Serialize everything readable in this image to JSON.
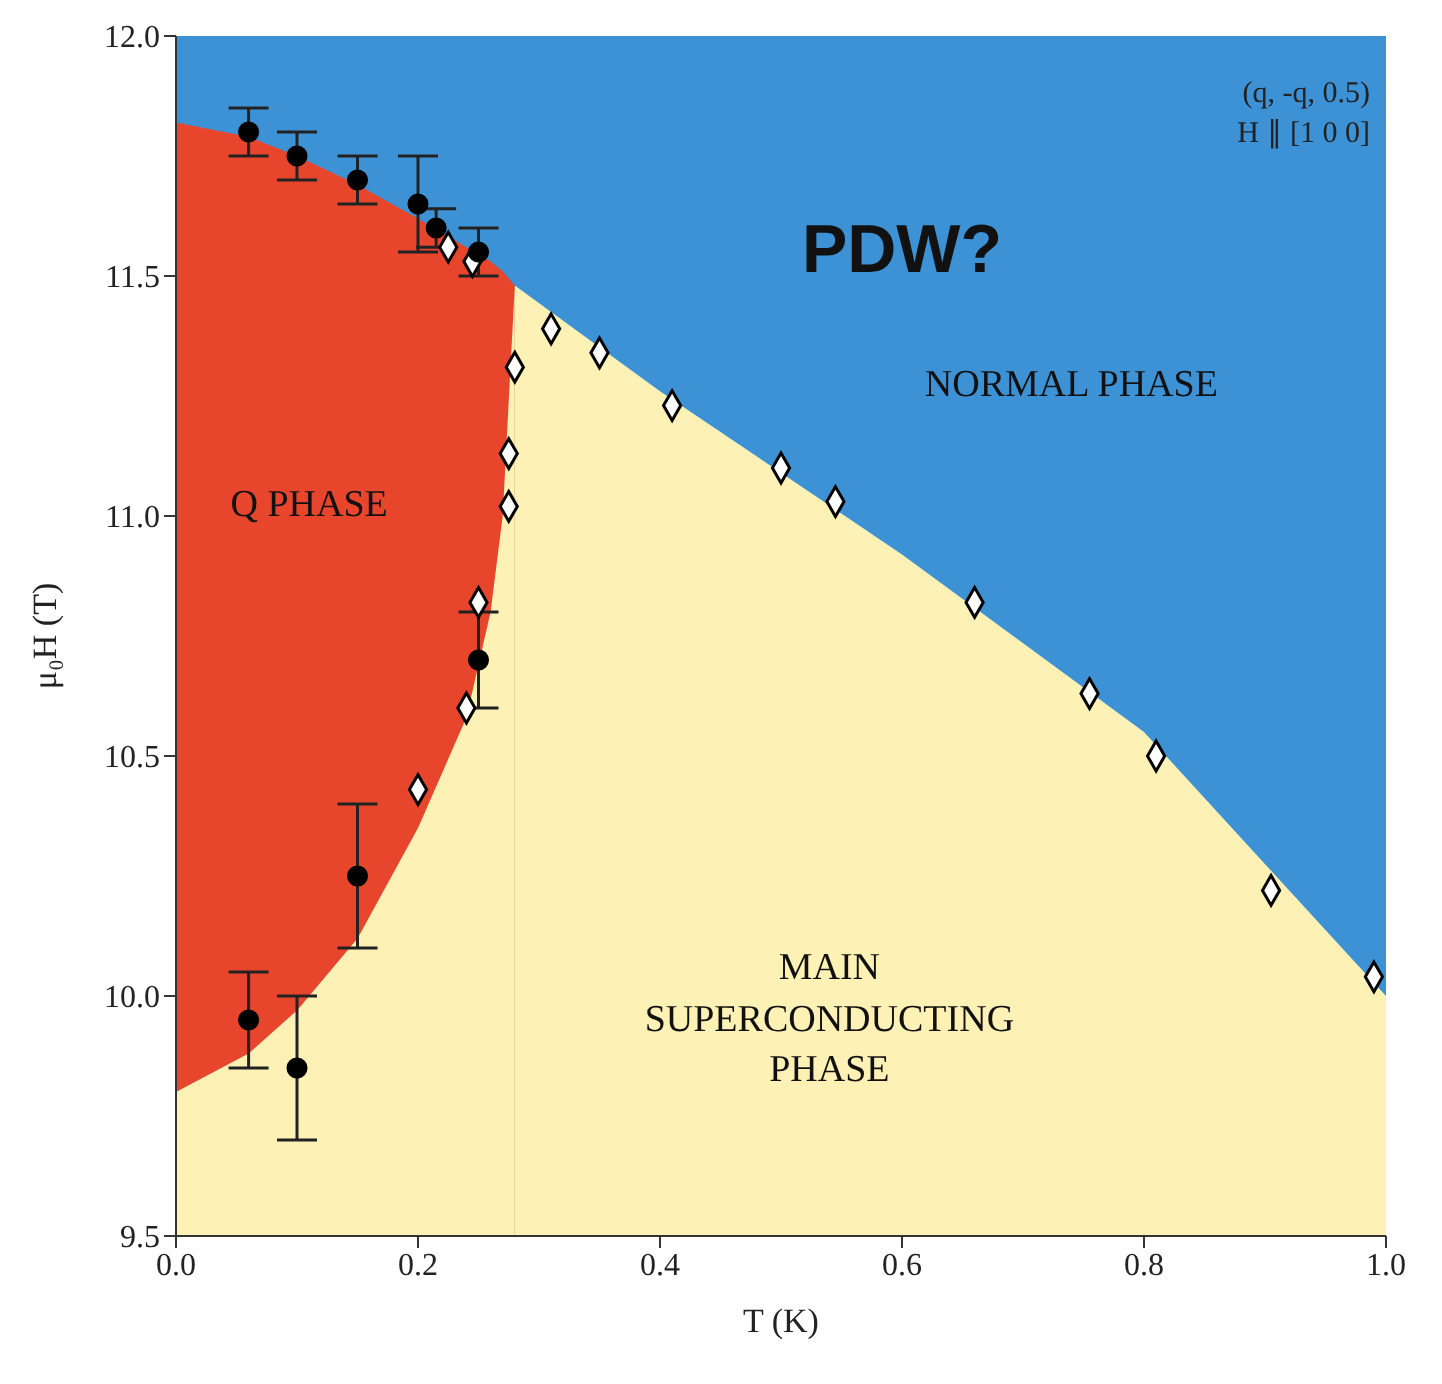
{
  "chart_data": {
    "type": "scatter",
    "xlabel": "T (K)",
    "ylabel": "μ₀H (T)",
    "xlim": [
      0,
      1
    ],
    "ylim": [
      9.5,
      12
    ],
    "xticks": [
      {
        "value": 0,
        "label": "0.0"
      },
      {
        "value": 0.2,
        "label": "0.2"
      },
      {
        "value": 0.4,
        "label": "0.4"
      },
      {
        "value": 0.6,
        "label": "0.6"
      },
      {
        "value": 0.8,
        "label": "0.8"
      },
      {
        "value": 1,
        "label": "1.0"
      }
    ],
    "yticks": [
      {
        "value": 9.5,
        "label": "9.5"
      },
      {
        "value": 10,
        "label": "10.0"
      },
      {
        "value": 10.5,
        "label": "10.5"
      },
      {
        "value": 11,
        "label": "11.0"
      },
      {
        "value": 11.5,
        "label": "11.5"
      },
      {
        "value": 12,
        "label": "12.0"
      }
    ],
    "series": [
      {
        "type": "area",
        "color": "#3d92d6",
        "x": [
          0,
          0.06,
          0.1,
          0.15,
          0.2,
          0.25,
          0.28,
          0.4,
          0.6,
          0.8,
          1
        ],
        "values": [
          12,
          12,
          12,
          12,
          12,
          12,
          12,
          12,
          12,
          12,
          12
        ]
      },
      {
        "type": "area",
        "color": "#fdf1b5",
        "x": [
          0.28,
          0.4,
          0.6,
          0.8,
          1
        ],
        "values": [
          11.48,
          11.26,
          10.92,
          10.55,
          10
        ]
      },
      {
        "type": "area",
        "color": "#e8462c",
        "x": [
          0,
          0.06,
          0.1,
          0.15,
          0.2,
          0.24,
          0.26,
          0.27,
          0.28
        ],
        "values": [
          11.82,
          11.79,
          11.75,
          11.69,
          11.62,
          11.56,
          11.53,
          11.51,
          11.48
        ]
      },
      {
        "type": "area",
        "color": "#fdf1b5",
        "x": [
          0,
          0.06,
          0.1,
          0.15,
          0.2,
          0.24,
          0.26,
          0.27,
          0.28
        ],
        "values": [
          9.8,
          9.88,
          9.97,
          10.12,
          10.35,
          10.58,
          10.8,
          11,
          11.48
        ]
      },
      {
        "marker": "diamond",
        "color": "#ffffff",
        "x": [
          0.225,
          0.245,
          0.31,
          0.35,
          0.41,
          0.5,
          0.545,
          0.66,
          0.755,
          0.81,
          0.905,
          0.99,
          0.28,
          0.275,
          0.275,
          0.25,
          0.24,
          0.2
        ],
        "values": [
          11.56,
          11.53,
          11.39,
          11.34,
          11.23,
          11.1,
          11.03,
          10.82,
          10.63,
          10.5,
          10.22,
          10.04,
          11.31,
          11.13,
          11.02,
          10.82,
          10.6,
          10.43
        ]
      },
      {
        "marker": "circle",
        "color": "#000000",
        "x": [
          0.06,
          0.1,
          0.15,
          0.2,
          0.215,
          0.25,
          0.25,
          0.15,
          0.06,
          0.1
        ],
        "values": [
          11.8,
          11.75,
          11.7,
          11.65,
          11.6,
          11.55,
          10.7,
          10.25,
          9.95,
          9.85
        ],
        "errors": [
          0.05,
          0.05,
          0.05,
          0.1,
          0.04,
          0.05,
          0.1,
          0.15,
          0.1,
          0.15
        ]
      }
    ],
    "annotations": [
      "(q, -q, 0.5)",
      "H ∥ [1 0 0]",
      "PDW?",
      "Q PHASE",
      "NORMAL PHASE",
      "MAIN SUPERCONDUCTING PHASE"
    ]
  }
}
